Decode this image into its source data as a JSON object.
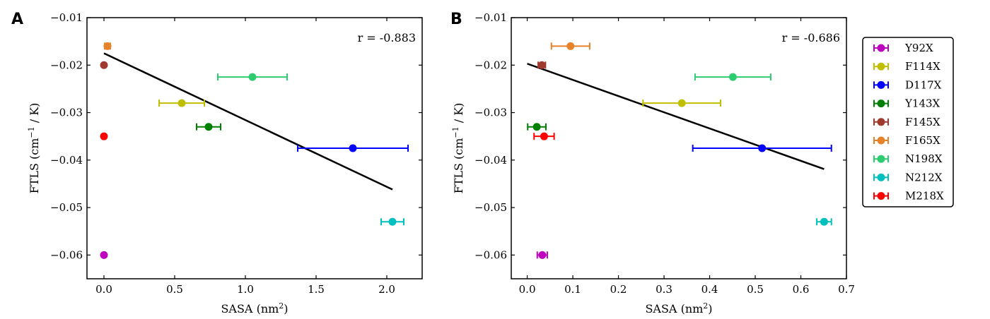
{
  "chart_data": [
    {
      "type": "scatter",
      "panel": "A",
      "annotation": "r = -0.883",
      "xlabel": "SASA (nm",
      "xlabel_sup": "2",
      "xlabel_end": ")",
      "ylabel": "FTLS (cm",
      "ylabel_sup": "−1",
      "ylabel_end": " / K)",
      "xlim": [
        -0.12,
        2.25
      ],
      "ylim": [
        -0.065,
        -0.01
      ],
      "xticks": [
        0.0,
        0.5,
        1.0,
        1.5,
        2.0
      ],
      "xtick_labels": [
        "0.0",
        "0.5",
        "1.0",
        "1.5",
        "2.0"
      ],
      "yticks": [
        -0.01,
        -0.02,
        -0.03,
        -0.04,
        -0.05,
        -0.06
      ],
      "ytick_labels": [
        "−0.01",
        "−0.02",
        "−0.03",
        "−0.04",
        "−0.05",
        "−0.06"
      ],
      "points": [
        {
          "series": "Y92X",
          "x": 0.0,
          "y": -0.06,
          "xerr": 0.0
        },
        {
          "series": "F114X",
          "x": 0.55,
          "y": -0.028,
          "xerr": 0.16
        },
        {
          "series": "D117X",
          "x": 1.76,
          "y": -0.0375,
          "xerr": 0.39
        },
        {
          "series": "Y143X",
          "x": 0.74,
          "y": -0.033,
          "xerr": 0.085
        },
        {
          "series": "F145X",
          "x": 0.0,
          "y": -0.02,
          "xerr": 0.0
        },
        {
          "series": "F165X",
          "x": 0.025,
          "y": -0.016,
          "xerr": 0.02
        },
        {
          "series": "N198X",
          "x": 1.05,
          "y": -0.0225,
          "xerr": 0.245
        },
        {
          "series": "N212X",
          "x": 2.04,
          "y": -0.053,
          "xerr": 0.08
        },
        {
          "series": "M218X",
          "x": 0.0,
          "y": -0.035,
          "xerr": 0.0
        }
      ],
      "fit_line": {
        "x": [
          0.0,
          2.04
        ],
        "y": [
          -0.0175,
          -0.0462
        ]
      }
    },
    {
      "type": "scatter",
      "panel": "B",
      "annotation": "r = -0.686",
      "xlabel": "SASA (nm",
      "xlabel_sup": "2",
      "xlabel_end": ")",
      "ylabel": "FTLS (cm",
      "ylabel_sup": "−1",
      "ylabel_end": " / K)",
      "xlim": [
        -0.035,
        0.7
      ],
      "ylim": [
        -0.065,
        -0.01
      ],
      "xticks": [
        0.0,
        0.1,
        0.2,
        0.3,
        0.4,
        0.5,
        0.6,
        0.7
      ],
      "xtick_labels": [
        "0.0",
        "0.1",
        "0.2",
        "0.3",
        "0.4",
        "0.5",
        "0.6",
        "0.7"
      ],
      "yticks": [
        -0.01,
        -0.02,
        -0.03,
        -0.04,
        -0.05,
        -0.06
      ],
      "ytick_labels": [
        "−0.01",
        "−0.02",
        "−0.03",
        "−0.04",
        "−0.05",
        "−0.06"
      ],
      "points": [
        {
          "series": "Y92X",
          "x": 0.033,
          "y": -0.06,
          "xerr": 0.011
        },
        {
          "series": "F114X",
          "x": 0.339,
          "y": -0.028,
          "xerr": 0.085
        },
        {
          "series": "D117X",
          "x": 0.515,
          "y": -0.0375,
          "xerr": 0.152
        },
        {
          "series": "Y143X",
          "x": 0.021,
          "y": -0.033,
          "xerr": 0.02
        },
        {
          "series": "F145X",
          "x": 0.032,
          "y": -0.02,
          "xerr": 0.008
        },
        {
          "series": "F165X",
          "x": 0.095,
          "y": -0.016,
          "xerr": 0.042
        },
        {
          "series": "N198X",
          "x": 0.451,
          "y": -0.0225,
          "xerr": 0.083
        },
        {
          "series": "N212X",
          "x": 0.651,
          "y": -0.053,
          "xerr": 0.016
        },
        {
          "series": "M218X",
          "x": 0.037,
          "y": -0.035,
          "xerr": 0.022
        }
      ],
      "fit_line": {
        "x": [
          0.0,
          0.651
        ],
        "y": [
          -0.0197,
          -0.0419
        ]
      }
    }
  ],
  "legend": {
    "placement": "right",
    "entries": [
      {
        "name": "Y92X",
        "color": "#bf00bf"
      },
      {
        "name": "F114X",
        "color": "#bfbf00"
      },
      {
        "name": "D117X",
        "color": "#0000ff"
      },
      {
        "name": "Y143X",
        "color": "#008000"
      },
      {
        "name": "F145X",
        "color": "#a0392e"
      },
      {
        "name": "F165X",
        "color": "#e6822a"
      },
      {
        "name": "N198X",
        "color": "#2ecc71"
      },
      {
        "name": "N212X",
        "color": "#00bfbf"
      },
      {
        "name": "M218X",
        "color": "#ff0000"
      }
    ]
  }
}
